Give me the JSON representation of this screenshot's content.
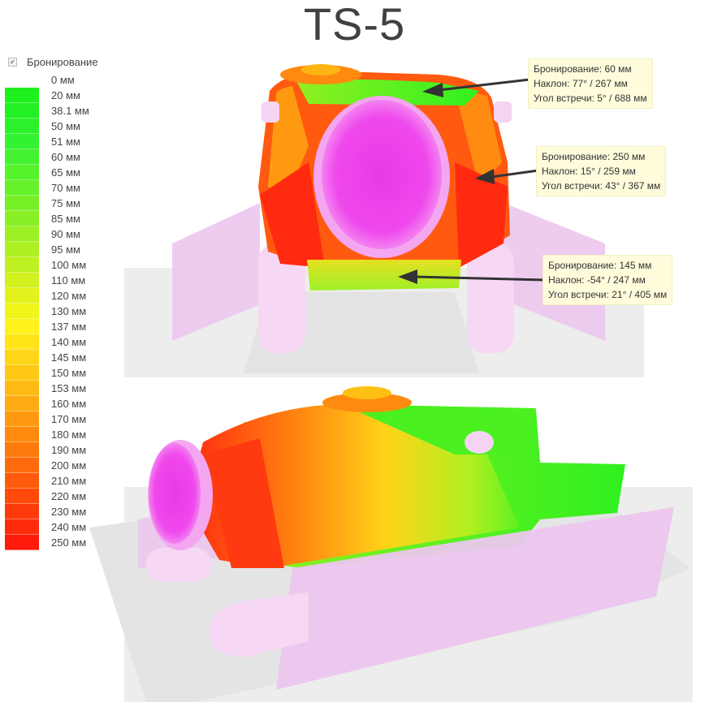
{
  "title": "TS-5",
  "legend": {
    "checkbox_label": "Бронирование",
    "entries": [
      {
        "label": "0 мм",
        "color": "#ffffff"
      },
      {
        "label": "20 мм",
        "color": "#1ef01e"
      },
      {
        "label": "38.1 мм",
        "color": "#22f022"
      },
      {
        "label": "50 мм",
        "color": "#2bf12b"
      },
      {
        "label": "51 мм",
        "color": "#33f22f"
      },
      {
        "label": "60 мм",
        "color": "#44f22f"
      },
      {
        "label": "65 мм",
        "color": "#55f32a"
      },
      {
        "label": "70 мм",
        "color": "#66f22a"
      },
      {
        "label": "75 мм",
        "color": "#78f028"
      },
      {
        "label": "85 мм",
        "color": "#8af026"
      },
      {
        "label": "90 мм",
        "color": "#9cf024"
      },
      {
        "label": "95 мм",
        "color": "#aef022"
      },
      {
        "label": "100 мм",
        "color": "#bff020"
      },
      {
        "label": "110 мм",
        "color": "#d2f01e"
      },
      {
        "label": "120 мм",
        "color": "#e2f31c"
      },
      {
        "label": "130 мм",
        "color": "#f0f51a"
      },
      {
        "label": "137 мм",
        "color": "#fff21a"
      },
      {
        "label": "140 мм",
        "color": "#ffe418"
      },
      {
        "label": "145 мм",
        "color": "#ffd617"
      },
      {
        "label": "150 мм",
        "color": "#ffc816"
      },
      {
        "label": "153 мм",
        "color": "#ffba14"
      },
      {
        "label": "160 мм",
        "color": "#ffaa12"
      },
      {
        "label": "170 мм",
        "color": "#ff9a10"
      },
      {
        "label": "180 мм",
        "color": "#ff8a0e"
      },
      {
        "label": "190 мм",
        "color": "#ff7a0d"
      },
      {
        "label": "200 мм",
        "color": "#ff6a0c"
      },
      {
        "label": "210 мм",
        "color": "#ff5a0b"
      },
      {
        "label": "220 мм",
        "color": "#ff4a0a"
      },
      {
        "label": "230 мм",
        "color": "#ff3a0a"
      },
      {
        "label": "240 мм",
        "color": "#ff2a0a"
      },
      {
        "label": "250 мм",
        "color": "#ff1a0a"
      }
    ]
  },
  "callouts": [
    {
      "lines": [
        "Бронирование: 60 мм",
        "Наклон: 77° / 267 мм",
        "Угол встречи: 5° / 688 мм"
      ]
    },
    {
      "lines": [
        "Бронирование: 250 мм",
        "Наклон: 15° / 259 мм",
        "Угол встречи: 43° / 367 мм"
      ]
    },
    {
      "lines": [
        "Бронирование: 145 мм",
        "Наклон: -54° / 247 мм",
        "Угол встречи: 21° / 405 мм"
      ]
    }
  ],
  "colors": {
    "mantlet": "#ee3cf0",
    "mantlet_light": "#f47cf2",
    "track": "#ecc6ee",
    "wheel": "#f4d4f2",
    "ground": "#ececec",
    "arrow": "#333333"
  }
}
